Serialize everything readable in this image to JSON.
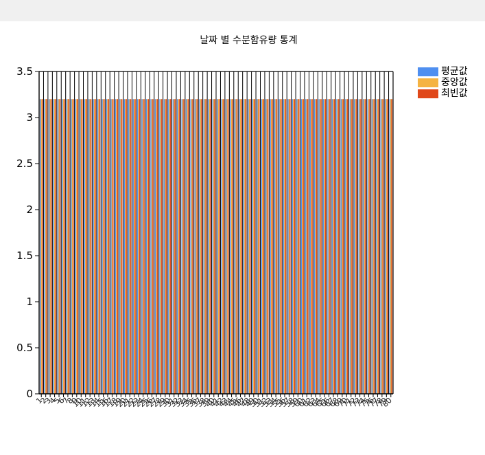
{
  "chart_data": {
    "type": "bar",
    "title": "날짜 별 수분함유량 통계",
    "xlabel": "",
    "ylabel": "",
    "ylim": [
      0,
      3.5
    ],
    "yticks": [
      "0",
      "0.5",
      "1",
      "1.5",
      "2",
      "2.5",
      "3",
      "3.5"
    ],
    "categories": [
      "1",
      "2",
      "3",
      "4",
      "5",
      "6",
      "7",
      "8",
      "9",
      "10",
      "11",
      "12",
      "13",
      "14",
      "15",
      "16",
      "17",
      "18",
      "19",
      "20",
      "21",
      "22",
      "23",
      "24",
      "25",
      "26",
      "27",
      "28",
      "29",
      "30",
      "31",
      "32",
      "33",
      "34",
      "35",
      "36",
      "37",
      "38",
      "39",
      "40",
      "41",
      "42",
      "43",
      "44",
      "45",
      "46",
      "47",
      "48",
      "49",
      "50",
      "51",
      "52",
      "53",
      "54",
      "55",
      "56",
      "57",
      "58",
      "59",
      "60",
      "61",
      "62",
      "63",
      "64",
      "65",
      "66",
      "67",
      "68",
      "69",
      "70",
      "71",
      "72",
      "73",
      "74",
      "75",
      "76",
      "77",
      "78",
      "79",
      "80"
    ],
    "series": [
      {
        "name": "평균값",
        "color": "#4f8ff0",
        "value": 3.2
      },
      {
        "name": "중앙값",
        "color": "#f5b342",
        "value": 3.2
      },
      {
        "name": "최빈값",
        "color": "#e0481a",
        "value": 3.2
      }
    ],
    "legend_position": "top-right",
    "grid": false
  }
}
